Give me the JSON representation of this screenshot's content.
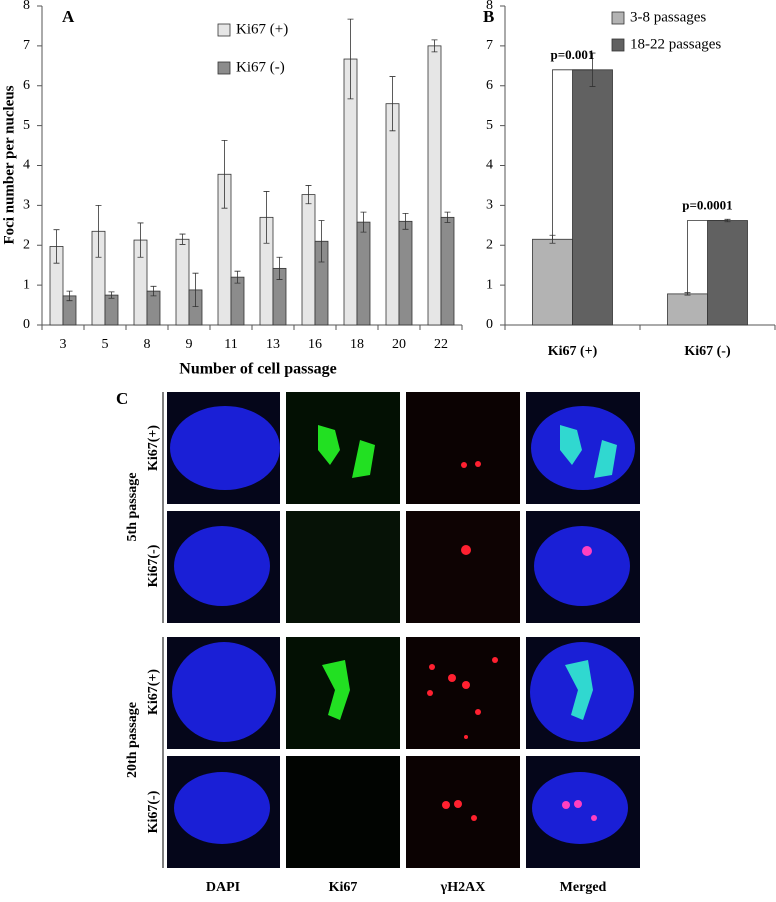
{
  "chart_data": [
    {
      "type": "bar",
      "title": "A",
      "y_label": "Foci number per nucleus",
      "x_label": "Number of cell passage",
      "categories": [
        "3",
        "5",
        "8",
        "9",
        "11",
        "13",
        "16",
        "18",
        "20",
        "22"
      ],
      "series": [
        {
          "name": "Ki67 (+)",
          "color": "#e6e6e6",
          "values": [
            1.97,
            2.35,
            2.13,
            2.15,
            3.78,
            2.7,
            3.27,
            6.67,
            5.55,
            7.0
          ],
          "errors": [
            0.42,
            0.65,
            0.43,
            0.13,
            0.85,
            0.65,
            0.23,
            1.0,
            0.68,
            0.15
          ]
        },
        {
          "name": "Ki67 (-)",
          "color": "#8c8c8c",
          "values": [
            0.73,
            0.75,
            0.85,
            0.88,
            1.2,
            1.42,
            2.1,
            2.58,
            2.6,
            2.7
          ],
          "errors": [
            0.12,
            0.08,
            0.12,
            0.42,
            0.15,
            0.28,
            0.52,
            0.25,
            0.2,
            0.13
          ]
        }
      ],
      "ylim": [
        0,
        8
      ],
      "yticks": [
        0,
        1,
        2,
        3,
        4,
        5,
        6,
        7,
        8
      ],
      "legend": "top-center"
    },
    {
      "type": "bar",
      "title": "B",
      "categories": [
        "Ki67 (+)",
        "Ki67 (-)"
      ],
      "series": [
        {
          "name": "3-8 passages",
          "color": "#b3b3b3",
          "values": [
            2.15,
            0.78
          ],
          "errors": [
            0.1,
            0.03
          ]
        },
        {
          "name": "18-22 passages",
          "color": "#616161",
          "values": [
            6.4,
            2.62
          ],
          "errors": [
            0.42,
            0.03
          ]
        }
      ],
      "annotations": [
        "p=0.001",
        "p=0.0001"
      ],
      "ylim": [
        0,
        8
      ],
      "yticks": [
        0,
        1,
        2,
        3,
        4,
        5,
        6,
        7,
        8
      ],
      "legend": "top-right"
    }
  ],
  "panel_c": {
    "title": "C",
    "columns": [
      "DAPI",
      "Ki67",
      "γH2AX",
      "Merged"
    ],
    "groups": [
      {
        "name": "5th passage",
        "rows": [
          "Ki67(+)",
          "Ki67(-)"
        ]
      },
      {
        "name": "20th passage",
        "rows": [
          "Ki67(+)",
          "Ki67(-)"
        ]
      }
    ]
  }
}
